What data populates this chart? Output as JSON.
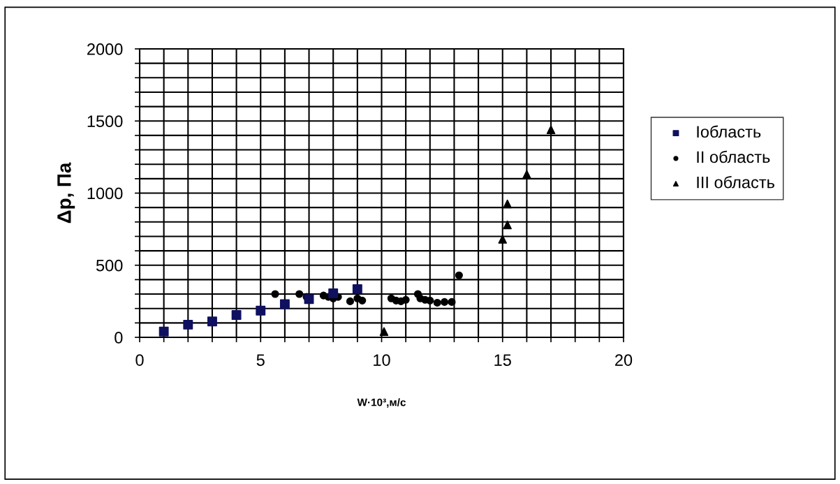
{
  "chart_data": {
    "type": "scatter",
    "xlabel": "W·10³,м/с",
    "ylabel": "Δp, Па",
    "xlim": [
      0,
      20
    ],
    "ylim": [
      0,
      2000
    ],
    "xticks": [
      0,
      {
        "value": 1,
        "label": null
      },
      {
        "value": 2,
        "label": null
      },
      {
        "value": 3,
        "label": null
      },
      {
        "value": 4,
        "label": null
      },
      5,
      {
        "value": 6,
        "label": null
      },
      {
        "value": 7,
        "label": null
      },
      {
        "value": 8,
        "label": null
      },
      {
        "value": 9,
        "label": null
      },
      10,
      {
        "value": 11,
        "label": null
      },
      {
        "value": 12,
        "label": null
      },
      {
        "value": 13,
        "label": null
      },
      {
        "value": 14,
        "label": null
      },
      15,
      {
        "value": 16,
        "label": null
      },
      {
        "value": 17,
        "label": null
      },
      {
        "value": 18,
        "label": null
      },
      {
        "value": 19,
        "label": null
      },
      20
    ],
    "yticks": [
      0,
      {
        "value": 100,
        "label": null
      },
      {
        "value": 200,
        "label": null
      },
      {
        "value": 300,
        "label": null
      },
      {
        "value": 400,
        "label": null
      },
      500,
      {
        "value": 600,
        "label": null
      },
      {
        "value": 700,
        "label": null
      },
      {
        "value": 800,
        "label": null
      },
      {
        "value": 900,
        "label": null
      },
      1000,
      {
        "value": 1100,
        "label": null
      },
      {
        "value": 1200,
        "label": null
      },
      {
        "value": 1300,
        "label": null
      },
      {
        "value": 1400,
        "label": null
      },
      1500,
      {
        "value": 1600,
        "label": null
      },
      {
        "value": 1700,
        "label": null
      },
      {
        "value": 1800,
        "label": null
      },
      {
        "value": 1900,
        "label": null
      },
      2000
    ],
    "grid": true,
    "legend": "right",
    "series": [
      {
        "name": "Iобласть",
        "color": "#101060",
        "marker": "square",
        "x": [
          1,
          2,
          3,
          4,
          5,
          6,
          7,
          8,
          9
        ],
        "values": [
          40,
          88,
          110,
          155,
          185,
          230,
          265,
          305,
          335
        ]
      },
      {
        "name": "II область",
        "color": "#000000",
        "marker": "circle",
        "x": [
          5.6,
          6.6,
          6.9,
          7.6,
          7.8,
          8.0,
          8.2,
          8.7,
          9.0,
          9.2,
          10.4,
          10.6,
          10.8,
          11.0,
          11.5,
          11.6,
          11.8,
          12.0,
          12.3,
          12.6,
          12.9,
          13.2
        ],
        "values": [
          300,
          300,
          280,
          290,
          280,
          270,
          280,
          250,
          270,
          255,
          270,
          255,
          250,
          260,
          300,
          270,
          260,
          255,
          240,
          245,
          245,
          430
        ]
      },
      {
        "name": "III область",
        "color": "#000000",
        "marker": "triangle",
        "x": [
          10.1,
          15.0,
          15.2,
          15.2,
          16.0,
          17.0
        ],
        "values": [
          40,
          680,
          780,
          925,
          1130,
          1440
        ]
      }
    ]
  }
}
